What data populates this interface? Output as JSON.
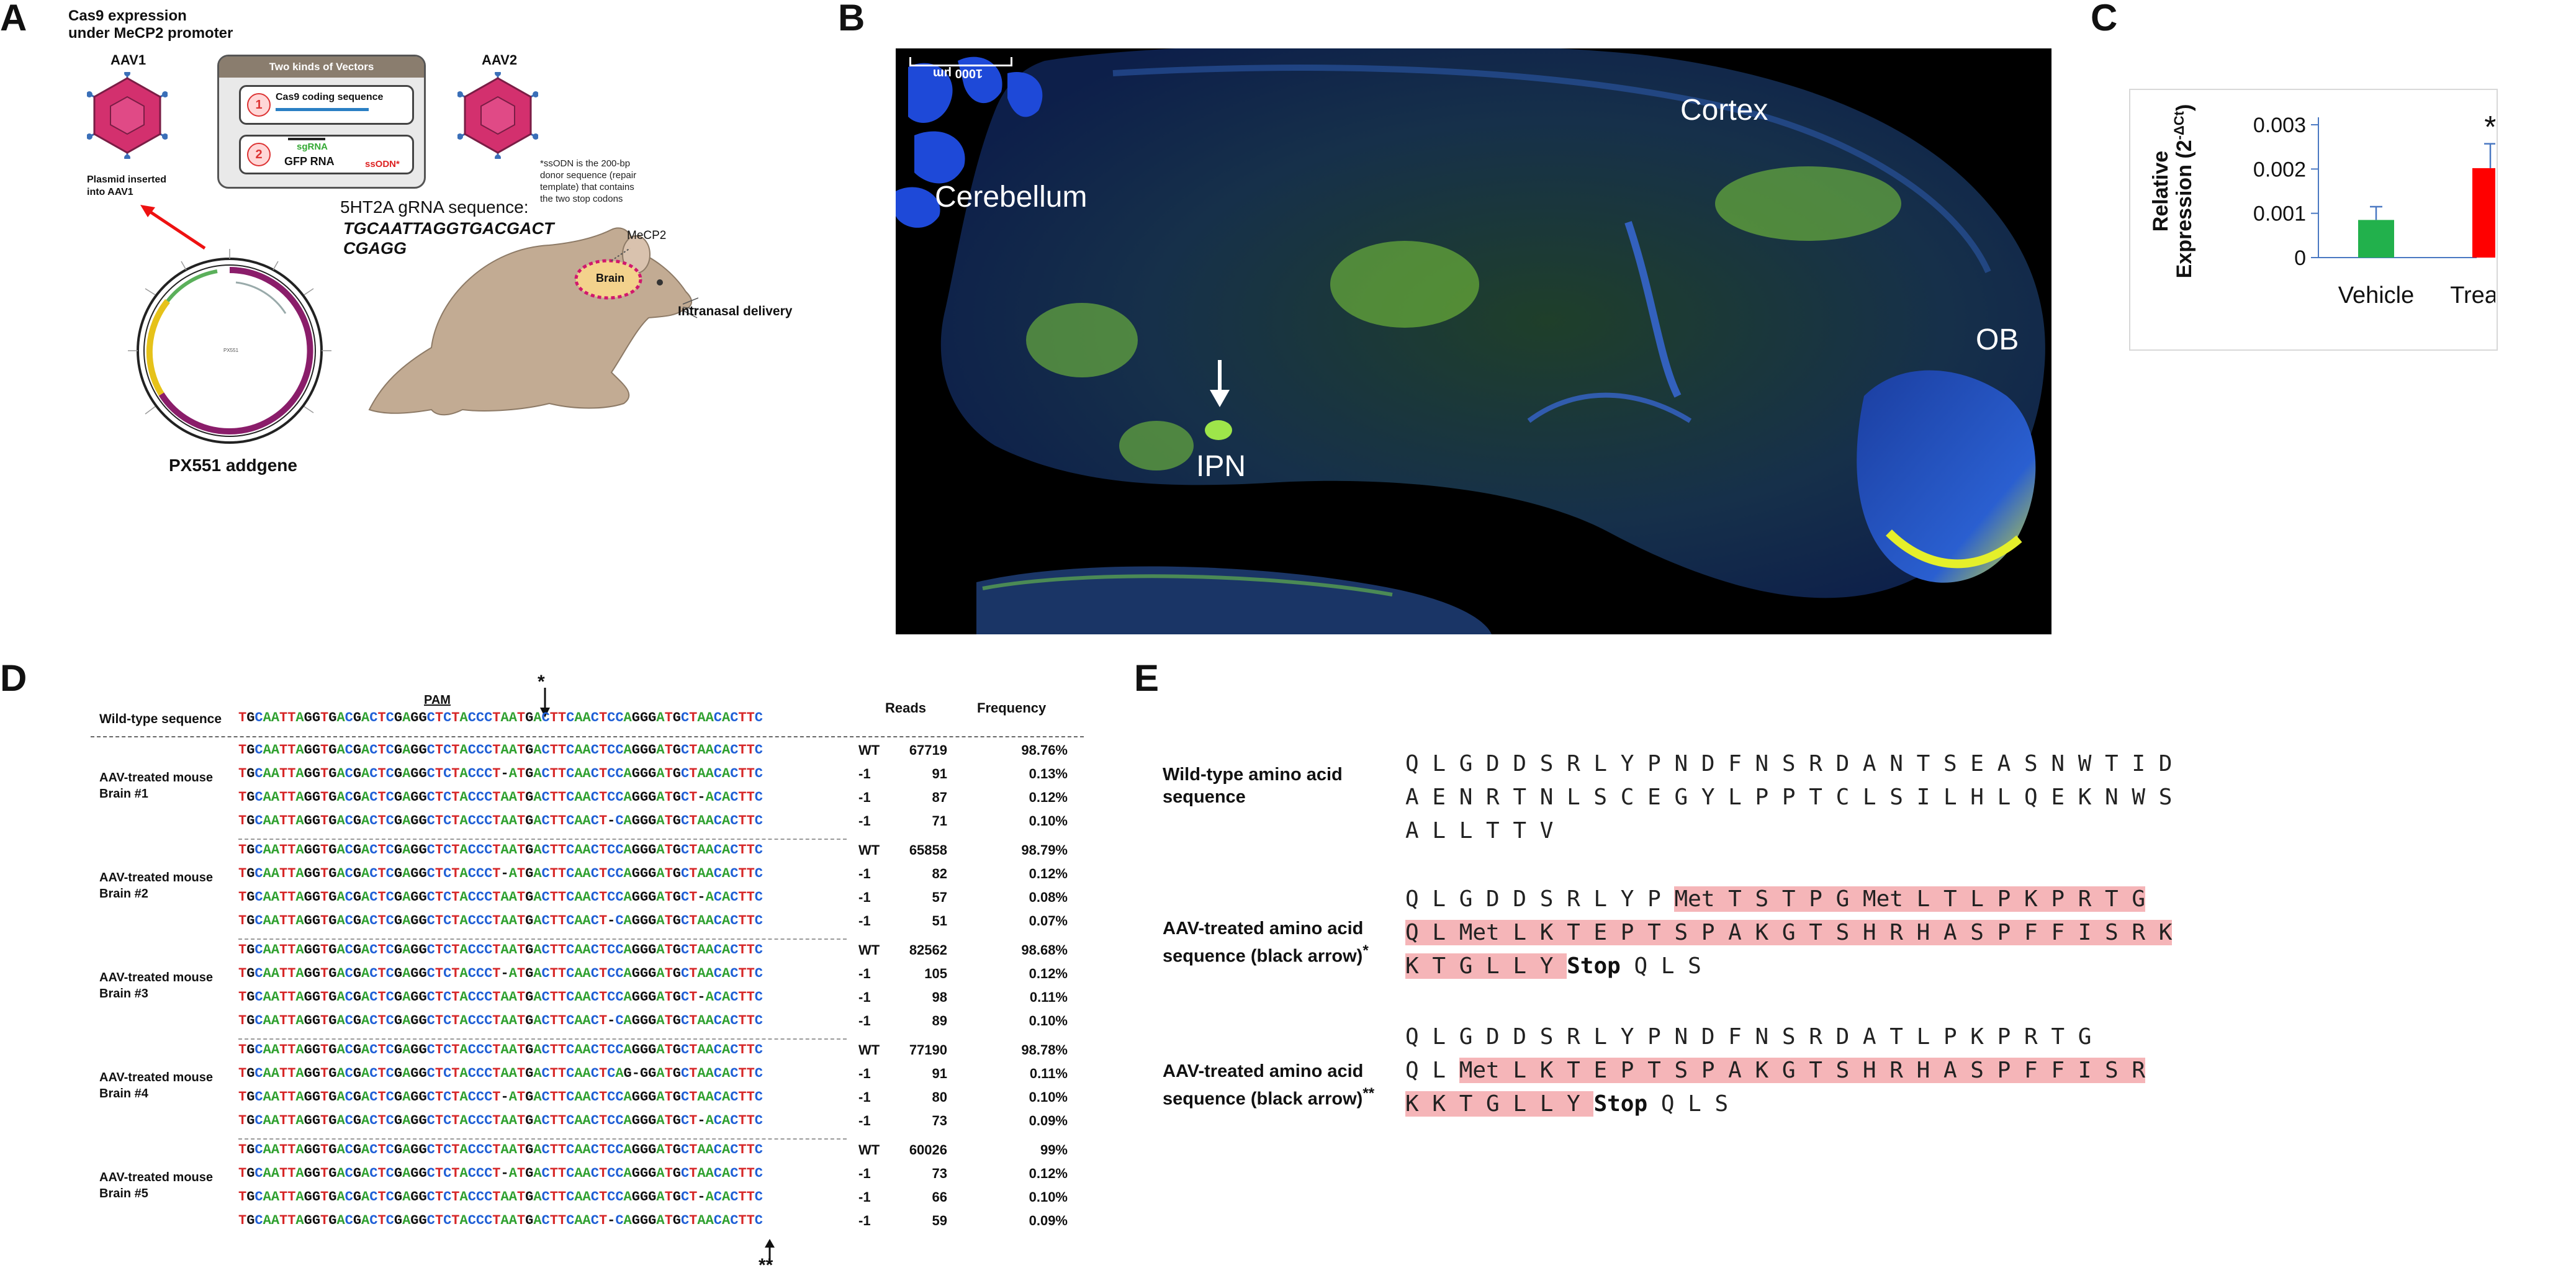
{
  "panels": {
    "a": "A",
    "b": "B",
    "c": "C",
    "d": "D",
    "e": "E"
  },
  "panel_a": {
    "title_line1": "Cas9 expression",
    "title_line2": "under MeCP2 promoter",
    "aav1": "AAV1",
    "aav2": "AAV2",
    "vectors_title": "Two kinds of Vectors",
    "vector1_num": "1",
    "vector1_label": "Cas9 coding sequence",
    "vector2_num": "2",
    "vector2_sgrna": "sgRNA",
    "vector2_gfp": "GFP RNA",
    "vector2_ssodn": "ssODN*",
    "ssodn_note": "*ssODN is the 200-bp donor sequence (repair template) that contains the two stop codons",
    "plasmid_inserted_1": "Plasmid inserted",
    "plasmid_inserted_2": "into AAV1",
    "grna_label": "5HT2A gRNA sequence:",
    "grna_seq1": "TGCAATTAGGTGACGACT",
    "grna_seq2": "CGAGG",
    "mecp2": "MeCP2",
    "brain": "Brain",
    "intranasal": "Intranasal delivery",
    "plasmid_name": "PX551 addgene"
  },
  "panel_b": {
    "scale": "1000 μm",
    "cerebellum": "Cerebellum",
    "cortex": "Cortex",
    "ob": "OB",
    "ipn": "IPN"
  },
  "panel_c": {
    "ylabel": "Relative Expression (2^-ΔCt)",
    "ylabel_line1": "Relative",
    "ylabel_line2": "Expression (2",
    "ylabel_sup": "-ΔCt",
    "ylabel_end": ")",
    "yticks": [
      "0.003",
      "0.002",
      "0.001",
      "0"
    ],
    "significance": "*"
  },
  "chart_data": {
    "type": "bar",
    "categories": [
      "Vehicle",
      "Treated"
    ],
    "values": [
      0.00085,
      0.00202
    ],
    "errors": [
      0.0003,
      0.00055
    ],
    "colors": [
      "#22b14c",
      "#ff0000"
    ],
    "ylabel": "Relative Expression (2^-ΔCt)",
    "ylim": [
      0,
      0.003
    ],
    "yticks": [
      0,
      0.001,
      0.002,
      0.003
    ],
    "annotations": [
      {
        "category": "Treated",
        "text": "*"
      }
    ]
  },
  "panel_d": {
    "pam": "PAM",
    "star_top": "*",
    "star_bottom": "**",
    "wt_label": "Wild-type sequence",
    "wt_seq": "TGCAATTAGGTGACGACTCGAGGCTCTACCCTAATGACTTCAACTCCAGGGATGCTAACACTTC",
    "reads_header": "Reads",
    "freq_header": "Frequency",
    "groups": [
      {
        "label1": "AAV-treated mouse",
        "label2": "Brain #1",
        "rows": [
          {
            "seq": "TGCAATTAGGTGACGACTCGAGGCTCTACCCTAATGACTTCAACTCCAGGGATGCTAACACTTC",
            "type": "WT",
            "reads": "67719",
            "freq": "98.76%"
          },
          {
            "seq": "TGCAATTAGGTGACGACTCGAGGCTCTACCCT-ATGACTTCAACTCCAGGGATGCTAACACTTC",
            "type": "-1",
            "reads": "91",
            "freq": "0.13%"
          },
          {
            "seq": "TGCAATTAGGTGACGACTCGAGGCTCTACCCTAATGACTTCAACTCCAGGGATGCT-ACACTTC",
            "type": "-1",
            "reads": "87",
            "freq": "0.12%"
          },
          {
            "seq": "TGCAATTAGGTGACGACTCGAGGCTCTACCCTAATGACTTCAACT-CAGGGATGCTAACACTTC",
            "type": "-1",
            "reads": "71",
            "freq": "0.10%"
          }
        ]
      },
      {
        "label1": "AAV-treated mouse",
        "label2": "Brain #2",
        "rows": [
          {
            "seq": "TGCAATTAGGTGACGACTCGAGGCTCTACCCTAATGACTTCAACTCCAGGGATGCTAACACTTC",
            "type": "WT",
            "reads": "65858",
            "freq": "98.79%"
          },
          {
            "seq": "TGCAATTAGGTGACGACTCGAGGCTCTACCCT-ATGACTTCAACTCCAGGGATGCTAACACTTC",
            "type": "-1",
            "reads": "82",
            "freq": "0.12%"
          },
          {
            "seq": "TGCAATTAGGTGACGACTCGAGGCTCTACCCTAATGACTTCAACTCCAGGGATGCT-ACACTTC",
            "type": "-1",
            "reads": "57",
            "freq": "0.08%"
          },
          {
            "seq": "TGCAATTAGGTGACGACTCGAGGCTCTACCCTAATGACTTCAACT-CAGGGATGCTAACACTTC",
            "type": "-1",
            "reads": "51",
            "freq": "0.07%"
          }
        ]
      },
      {
        "label1": "AAV-treated mouse",
        "label2": "Brain #3",
        "rows": [
          {
            "seq": "TGCAATTAGGTGACGACTCGAGGCTCTACCCTAATGACTTCAACTCCAGGGATGCTAACACTTC",
            "type": "WT",
            "reads": "82562",
            "freq": "98.68%"
          },
          {
            "seq": "TGCAATTAGGTGACGACTCGAGGCTCTACCCT-ATGACTTCAACTCCAGGGATGCTAACACTTC",
            "type": "-1",
            "reads": "105",
            "freq": "0.12%"
          },
          {
            "seq": "TGCAATTAGGTGACGACTCGAGGCTCTACCCTAATGACTTCAACTCCAGGGATGCT-ACACTTC",
            "type": "-1",
            "reads": "98",
            "freq": "0.11%"
          },
          {
            "seq": "TGCAATTAGGTGACGACTCGAGGCTCTACCCTAATGACTTCAACT-CAGGGATGCTAACACTTC",
            "type": "-1",
            "reads": "89",
            "freq": "0.10%"
          }
        ]
      },
      {
        "label1": "AAV-treated mouse",
        "label2": "Brain #4",
        "rows": [
          {
            "seq": "TGCAATTAGGTGACGACTCGAGGCTCTACCCTAATGACTTCAACTCCAGGGATGCTAACACTTC",
            "type": "WT",
            "reads": "77190",
            "freq": "98.78%"
          },
          {
            "seq": "TGCAATTAGGTGACGACTCGAGGCTCTACCCTAATGACTTCAACTCAG-GGATGCTAACACTTC",
            "type": "-1",
            "reads": "91",
            "freq": "0.11%"
          },
          {
            "seq": "TGCAATTAGGTGACGACTCGAGGCTCTACCCT-ATGACTTCAACTCCAGGGATGCTAACACTTC",
            "type": "-1",
            "reads": "80",
            "freq": "0.10%"
          },
          {
            "seq": "TGCAATTAGGTGACGACTCGAGGCTCTACCCTAATGACTTCAACTCCAGGGATGCT-ACACTTC",
            "type": "-1",
            "reads": "73",
            "freq": "0.09%"
          }
        ]
      },
      {
        "label1": "AAV-treated mouse",
        "label2": "Brain #5",
        "rows": [
          {
            "seq": "TGCAATTAGGTGACGACTCGAGGCTCTACCCTAATGACTTCAACTCCAGGGATGCTAACACTTC",
            "type": "WT",
            "reads": "60026",
            "freq": "99%"
          },
          {
            "seq": "TGCAATTAGGTGACGACTCGAGGCTCTACCCT-ATGACTTCAACTCCAGGGATGCTAACACTTC",
            "type": "-1",
            "reads": "73",
            "freq": "0.12%"
          },
          {
            "seq": "TGCAATTAGGTGACGACTCGAGGCTCTACCCTAATGACTTCAACTCCAGGGATGCT-ACACTTC",
            "type": "-1",
            "reads": "66",
            "freq": "0.10%"
          },
          {
            "seq": "TGCAATTAGGTGACGACTCGAGGCTCTACCCTAATGACTTCAACT-CAGGGATGCTAACACTTC",
            "type": "-1",
            "reads": "59",
            "freq": "0.09%"
          }
        ]
      }
    ],
    "base_colors": {
      "A": "#2fa02f",
      "T": "#d62728",
      "G": "#111111",
      "C": "#1f5fd6",
      "-": "#111111"
    }
  },
  "panel_e": {
    "wt_label1": "Wild-type amino acid",
    "wt_label2": "sequence",
    "wt_line1": "Q L G D D S R L Y P N D F N S R D A N T S E A S N W T I D",
    "wt_line2": "A E N R T N L S C E G Y L P P T C L S I L H L Q E K N W S",
    "wt_line3": "A L L T T V",
    "t1_label1": "AAV-treated amino acid",
    "t1_label2": "sequence (black arrow)",
    "t1_star": "*",
    "t1_line1_plain": "Q L G D D S R L Y P ",
    "t1_line1_hl": "Met T S T P G Met L T L P K P R T G",
    "t1_line2_hl": "Q L Met L K T E P T S P A K G T S H R H A S P F F I S R K",
    "t1_line3_hl": "K T G L L Y ",
    "t1_stop": "Stop",
    "t1_line3_end": " Q L S",
    "t2_label1": "AAV-treated amino acid",
    "t2_label2": "sequence (black arrow)",
    "t2_star": "**",
    "t2_line1": "Q L G D D S R L Y P N D F N S R D A T L P K P R T G",
    "t2_line2_plain": "Q L ",
    "t2_line2_hl": "Met L K T E P T S P A K G T S H R H A S P F F I S R",
    "t2_line3_hl": "K K T G L L Y ",
    "t2_stop": "Stop",
    "t2_line3_end": " Q L S",
    "highlight_color": "#f5b5b8"
  }
}
